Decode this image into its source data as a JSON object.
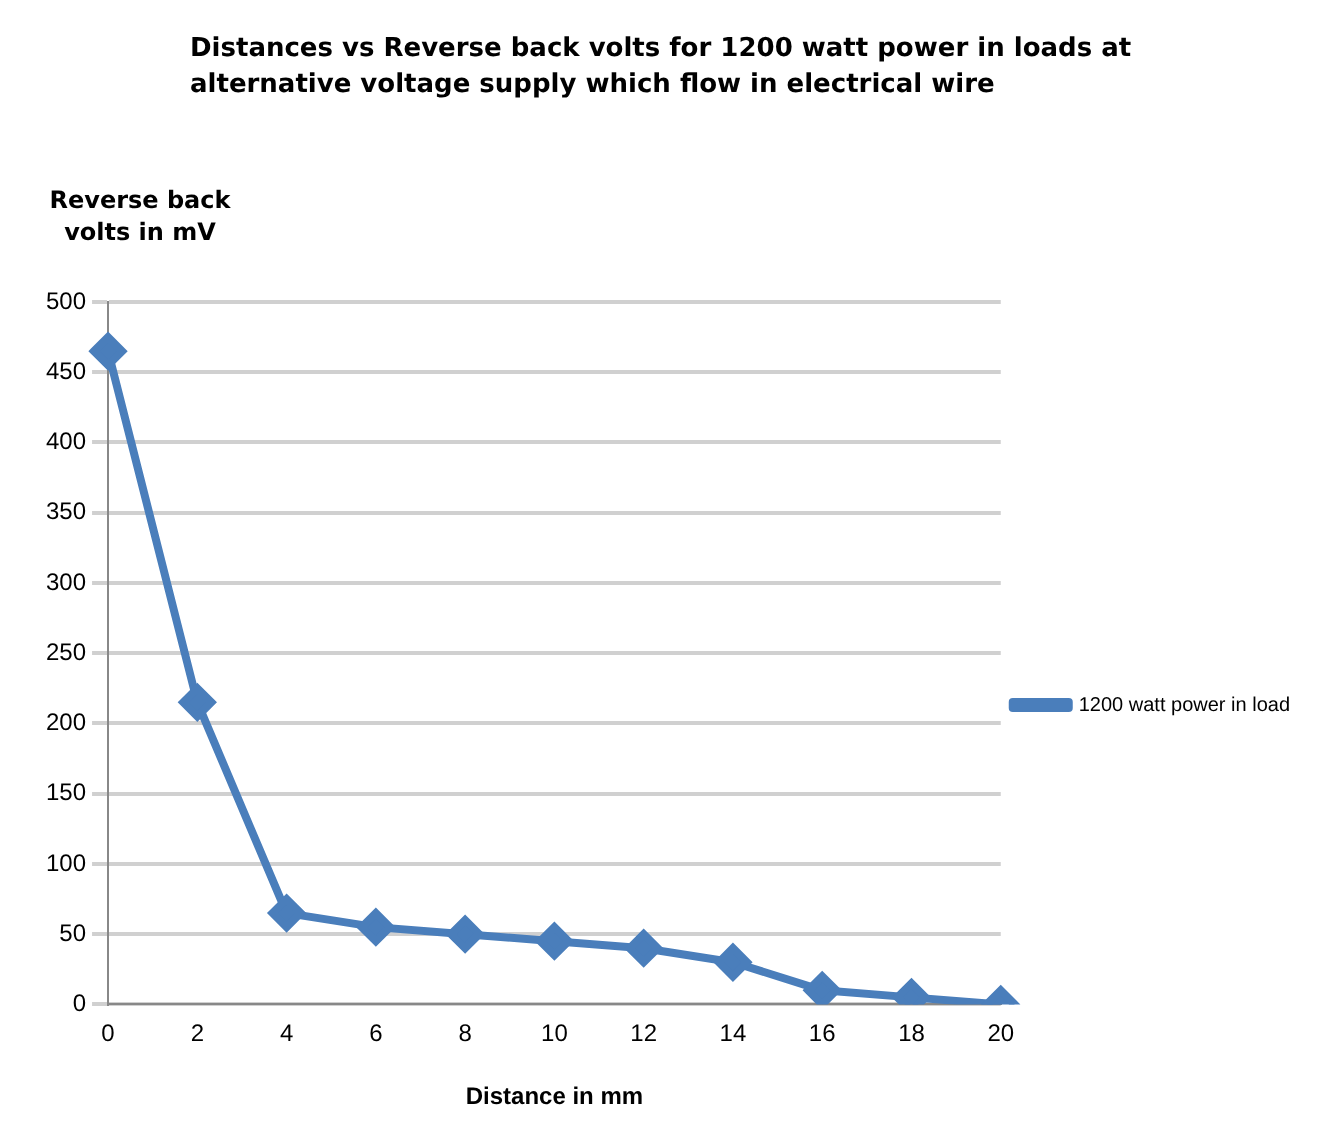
{
  "chart_data": {
    "type": "line",
    "title": "Distances vs Reverse back volts for 1200 watt power in loads at alternative voltage supply which flow in electrical wire",
    "xlabel": "Distance in mm",
    "ylabel": "Reverse back volts in mV",
    "categories": [
      "0",
      "2",
      "4",
      "6",
      "8",
      "10",
      "12",
      "14",
      "16",
      "18",
      "20"
    ],
    "series": [
      {
        "name": "1200 watt power in load",
        "color": "#4a7ebb",
        "values": [
          465,
          215,
          65,
          55,
          50,
          45,
          40,
          30,
          10,
          5,
          0
        ]
      }
    ],
    "ylim": [
      0,
      500
    ],
    "yticks": [
      0,
      50,
      100,
      150,
      200,
      250,
      300,
      350,
      400,
      450,
      500
    ],
    "grid": "y",
    "legend": "right",
    "marker": "diamond",
    "line_style": "solid"
  }
}
